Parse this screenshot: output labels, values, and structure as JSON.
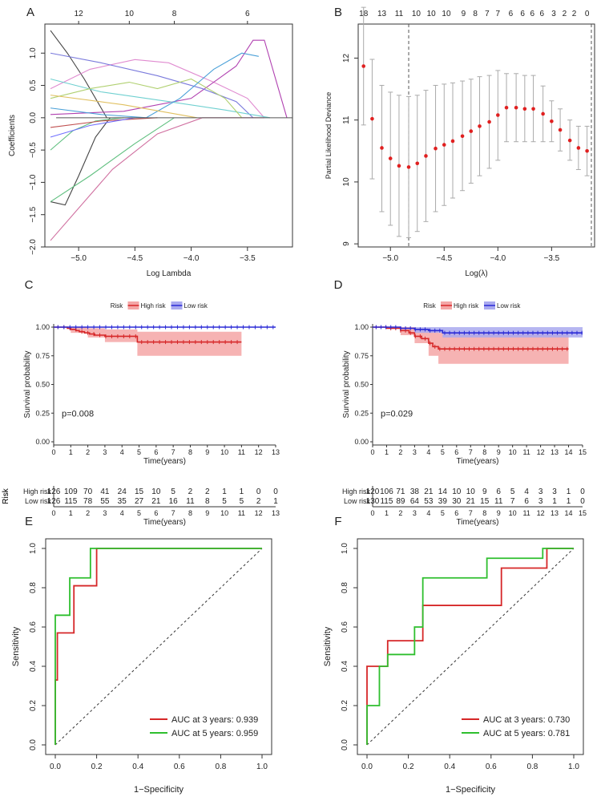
{
  "colors": {
    "red": "#d62728",
    "red_fill": "#f4a6a6",
    "blue": "#2b2bd6",
    "blue_fill": "#a9a9ef",
    "green": "#2fbf2f",
    "axis": "#222222",
    "grey": "#9a9a9a"
  },
  "panels": [
    {
      "letter": "A"
    },
    {
      "letter": "B"
    },
    {
      "letter": "C"
    },
    {
      "letter": "D"
    },
    {
      "letter": "E"
    },
    {
      "letter": "F"
    }
  ],
  "chart_data": [
    {
      "id": "A",
      "type": "line",
      "title": "",
      "xlabel": "Log Lambda",
      "ylabel": "Coefficients",
      "xlim": [
        -5.3,
        -3.1
      ],
      "ylim": [
        -2.0,
        1.45
      ],
      "xticks": [
        -5.0,
        -4.5,
        -4.0,
        -3.5
      ],
      "yticks": [
        -2.0,
        -1.5,
        -1.0,
        -0.5,
        0.0,
        0.5,
        1.0
      ],
      "top_axis": {
        "ticks": [
          -5.0,
          -4.55,
          -4.15,
          -3.5
        ],
        "labels": [
          "12",
          "10",
          "8",
          "6"
        ]
      },
      "series": [
        {
          "name": "s1",
          "color": "#444444",
          "x": [
            -5.25,
            -5.1,
            -4.95,
            -4.75
          ],
          "y": [
            1.35,
            1.0,
            0.6,
            0.0
          ]
        },
        {
          "name": "s2",
          "color": "#444444",
          "x": [
            -5.25,
            -5.12,
            -5.0,
            -4.85,
            -4.72
          ],
          "y": [
            -1.3,
            -1.35,
            -0.9,
            -0.3,
            0.0
          ]
        },
        {
          "name": "s3",
          "color": "#d070a0",
          "x": [
            -5.25,
            -5.0,
            -4.7,
            -4.3,
            -3.9,
            -3.6,
            -3.35
          ],
          "y": [
            -1.9,
            -1.4,
            -0.8,
            -0.25,
            0.0,
            0.0,
            0.0
          ]
        },
        {
          "name": "s4",
          "color": "#e08bd0",
          "x": [
            -5.25,
            -4.9,
            -4.5,
            -4.2,
            -3.8,
            -3.5,
            -3.35
          ],
          "y": [
            0.45,
            0.75,
            0.9,
            0.85,
            0.55,
            0.3,
            0.0
          ]
        },
        {
          "name": "s5",
          "color": "#b040b0",
          "x": [
            -5.25,
            -4.6,
            -4.0,
            -3.6,
            -3.45,
            -3.35,
            -3.15
          ],
          "y": [
            0.05,
            0.1,
            0.3,
            0.8,
            1.2,
            1.2,
            0.0
          ]
        },
        {
          "name": "s6",
          "color": "#7a7adc",
          "x": [
            -5.25,
            -4.8,
            -4.3,
            -3.9,
            -3.6,
            -3.45
          ],
          "y": [
            1.0,
            0.85,
            0.65,
            0.45,
            0.25,
            0.0
          ]
        },
        {
          "name": "s7",
          "color": "#6fd0d0",
          "x": [
            -5.25,
            -4.8,
            -4.2,
            -3.7,
            -3.3
          ],
          "y": [
            0.6,
            0.4,
            0.25,
            0.12,
            0.0
          ]
        },
        {
          "name": "s8",
          "color": "#b0d070",
          "x": [
            -5.25,
            -4.9,
            -4.55,
            -4.3,
            -4.0,
            -3.7,
            -3.55
          ],
          "y": [
            0.3,
            0.45,
            0.55,
            0.45,
            0.6,
            0.3,
            0.0
          ]
        },
        {
          "name": "s9",
          "color": "#4aa0d8",
          "x": [
            -5.25,
            -4.8,
            -4.4,
            -4.1,
            -3.8,
            -3.55,
            -3.4
          ],
          "y": [
            0.15,
            0.05,
            0.0,
            0.3,
            0.75,
            1.0,
            0.95
          ]
        },
        {
          "name": "s10",
          "color": "#60c080",
          "x": [
            -5.25,
            -5.05,
            -4.85,
            -4.6
          ],
          "y": [
            -0.5,
            -0.2,
            -0.05,
            0.0
          ]
        },
        {
          "name": "s11",
          "color": "#5fbf7f",
          "x": [
            -5.25,
            -4.9,
            -4.5,
            -4.15
          ],
          "y": [
            -1.3,
            -0.9,
            -0.4,
            0.0
          ]
        },
        {
          "name": "s12",
          "color": "#e0c060",
          "x": [
            -5.25,
            -4.6,
            -3.95
          ],
          "y": [
            0.35,
            0.2,
            0.0
          ]
        },
        {
          "name": "s13",
          "color": "#c05050",
          "x": [
            -5.25,
            -4.8,
            -4.3
          ],
          "y": [
            -0.15,
            -0.05,
            0.0
          ]
        },
        {
          "name": "s14",
          "color": "#7070ff",
          "x": [
            -5.25,
            -4.9,
            -4.5
          ],
          "y": [
            -0.3,
            -0.12,
            0.0
          ]
        }
      ]
    },
    {
      "id": "B",
      "type": "scatter",
      "title": "",
      "xlabel": "Log(λ)",
      "ylabel": "Partial Likelihood Deviance",
      "xlim": [
        -5.3,
        -3.1
      ],
      "ylim": [
        8.95,
        12.55
      ],
      "xticks": [
        -5.0,
        -4.5,
        -4.0,
        -3.5
      ],
      "yticks": [
        9,
        10,
        11,
        12
      ],
      "vlines": [
        -4.83,
        -3.13
      ],
      "top_labels": [
        "18",
        "13",
        "11",
        "10",
        "10",
        "10",
        "9",
        "8",
        "7",
        "7",
        "6",
        "6",
        "6",
        "6",
        "3",
        "2",
        "2",
        "0"
      ],
      "top_label_x": [
        -5.25,
        -5.08,
        -4.92,
        -4.76,
        -4.62,
        -4.48,
        -4.32,
        -4.21,
        -4.1,
        -4.0,
        -3.88,
        -3.77,
        -3.68,
        -3.59,
        -3.48,
        -3.38,
        -3.29,
        -3.17
      ],
      "x": [
        -5.25,
        -5.17,
        -5.08,
        -5.0,
        -4.92,
        -4.83,
        -4.75,
        -4.67,
        -4.58,
        -4.5,
        -4.42,
        -4.33,
        -4.25,
        -4.17,
        -4.08,
        -4.0,
        -3.92,
        -3.83,
        -3.75,
        -3.67,
        -3.58,
        -3.5,
        -3.42,
        -3.33,
        -3.25,
        -3.17
      ],
      "y": [
        11.87,
        11.02,
        10.55,
        10.38,
        10.26,
        10.24,
        10.3,
        10.42,
        10.54,
        10.6,
        10.66,
        10.74,
        10.82,
        10.9,
        10.97,
        11.08,
        11.2,
        11.2,
        11.18,
        11.18,
        11.1,
        10.98,
        10.84,
        10.67,
        10.55,
        10.5
      ],
      "err_low": [
        10.92,
        10.05,
        9.52,
        9.3,
        9.12,
        9.1,
        9.2,
        9.36,
        9.52,
        9.62,
        9.74,
        9.86,
        9.98,
        10.1,
        10.22,
        10.35,
        10.65,
        10.65,
        10.65,
        10.65,
        10.65,
        10.65,
        10.5,
        10.35,
        10.2,
        10.1
      ],
      "err_high": [
        12.82,
        11.98,
        11.56,
        11.45,
        11.4,
        11.38,
        11.4,
        11.48,
        11.56,
        11.58,
        11.6,
        11.63,
        11.66,
        11.7,
        11.72,
        11.8,
        11.75,
        11.75,
        11.72,
        11.72,
        11.55,
        11.31,
        11.18,
        11.0,
        10.9,
        10.9
      ]
    },
    {
      "id": "C",
      "type": "line",
      "title": "",
      "xlabel": "Time(years)",
      "ylabel": "Survival probability",
      "xlim": [
        0,
        13
      ],
      "ylim": [
        0,
        1.0
      ],
      "xticks": [
        0,
        1,
        2,
        3,
        4,
        5,
        6,
        7,
        8,
        9,
        10,
        11,
        12,
        13
      ],
      "yticks": [
        "0.00",
        "0.25",
        "0.50",
        "0.75",
        "1.00"
      ],
      "legend": {
        "title": "Risk",
        "entries": [
          "High risk",
          "Low risk"
        ],
        "position": "top"
      },
      "pvalue": "p=0.008",
      "series": [
        {
          "name": "High risk",
          "x": [
            0,
            0.8,
            1.0,
            1.3,
            1.5,
            1.8,
            2.1,
            2.4,
            2.7,
            3.0,
            4.9,
            11.0
          ],
          "y": [
            1.0,
            0.99,
            0.98,
            0.97,
            0.96,
            0.95,
            0.94,
            0.93,
            0.93,
            0.92,
            0.87,
            0.87
          ],
          "ci_x": [
            0,
            1.0,
            2.0,
            3.0,
            4.9,
            11.0
          ],
          "ci_low": [
            1.0,
            0.95,
            0.91,
            0.87,
            0.75,
            0.75
          ],
          "ci_high": [
            1.0,
            1.0,
            0.99,
            0.98,
            0.96,
            0.96
          ]
        },
        {
          "name": "Low risk",
          "x": [
            0,
            13.0
          ],
          "y": [
            1.0,
            1.0
          ]
        }
      ],
      "risk_table": {
        "label": "Risk",
        "xlabel": "Time(years)",
        "rows": [
          {
            "name": "High risk",
            "values": [
              "126",
              "109",
              "70",
              "41",
              "24",
              "15",
              "10",
              "5",
              "2",
              "2",
              "1",
              "1",
              "0",
              "0"
            ]
          },
          {
            "name": "Low risk",
            "values": [
              "126",
              "115",
              "78",
              "55",
              "35",
              "27",
              "21",
              "16",
              "11",
              "8",
              "5",
              "5",
              "2",
              "1"
            ]
          }
        ],
        "times": [
          0,
          1,
          2,
          3,
          4,
          5,
          6,
          7,
          8,
          9,
          10,
          11,
          12,
          13
        ]
      }
    },
    {
      "id": "D",
      "type": "line",
      "title": "",
      "xlabel": "Time(years)",
      "ylabel": "Survival probability",
      "xlim": [
        0,
        15
      ],
      "ylim": [
        0,
        1.0
      ],
      "xticks": [
        0,
        1,
        2,
        3,
        4,
        5,
        6,
        7,
        8,
        9,
        10,
        11,
        12,
        13,
        14,
        15
      ],
      "yticks": [
        "0.00",
        "0.25",
        "0.50",
        "0.75",
        "1.00"
      ],
      "legend": {
        "title": "Risk",
        "entries": [
          "High risk",
          "Low risk"
        ],
        "position": "top"
      },
      "pvalue": "p=0.029",
      "series": [
        {
          "name": "High risk",
          "x": [
            0,
            1.0,
            2.0,
            2.6,
            3.0,
            3.5,
            4.0,
            4.3,
            4.7,
            14.0
          ],
          "y": [
            1.0,
            0.99,
            0.97,
            0.95,
            0.92,
            0.9,
            0.86,
            0.83,
            0.81,
            0.81
          ],
          "ci_x": [
            0,
            2.0,
            3.0,
            4.0,
            4.7,
            14.0
          ],
          "ci_low": [
            1.0,
            0.93,
            0.86,
            0.75,
            0.68,
            0.68
          ],
          "ci_high": [
            1.0,
            1.0,
            0.99,
            0.97,
            0.95,
            0.95
          ]
        },
        {
          "name": "Low risk",
          "x": [
            0,
            2.0,
            3.0,
            4.0,
            5.0,
            15.0
          ],
          "y": [
            1.0,
            0.99,
            0.98,
            0.97,
            0.95,
            0.95
          ],
          "ci_x": [
            0,
            3.0,
            5.0,
            15.0
          ],
          "ci_low": [
            1.0,
            0.95,
            0.91,
            0.91
          ],
          "ci_high": [
            1.0,
            1.0,
            1.0,
            1.0
          ]
        }
      ],
      "risk_table": {
        "label": "Risk",
        "xlabel": "Time(years)",
        "rows": [
          {
            "name": "High risk",
            "values": [
              "120",
              "106",
              "71",
              "38",
              "21",
              "14",
              "10",
              "10",
              "9",
              "6",
              "5",
              "4",
              "3",
              "3",
              "1",
              "0"
            ]
          },
          {
            "name": "Low risk",
            "values": [
              "130",
              "115",
              "89",
              "64",
              "53",
              "39",
              "30",
              "21",
              "15",
              "11",
              "7",
              "6",
              "3",
              "1",
              "1",
              "0"
            ]
          }
        ],
        "times": [
          0,
          1,
          2,
          3,
          4,
          5,
          6,
          7,
          8,
          9,
          10,
          11,
          12,
          13,
          14,
          15
        ]
      }
    },
    {
      "id": "E",
      "type": "line",
      "title": "",
      "xlabel": "1−Specificity",
      "ylabel": "Sensitivity",
      "xlim": [
        0,
        1.0
      ],
      "ylim": [
        0,
        1.0
      ],
      "xticks": [
        "0.0",
        "0.2",
        "0.4",
        "0.6",
        "0.8",
        "1.0"
      ],
      "yticks": [
        "0.0",
        "0.2",
        "0.4",
        "0.6",
        "0.8",
        "1.0"
      ],
      "legend": {
        "position": "bottom-right"
      },
      "series": [
        {
          "name": "AUC at 3 years: 0.939",
          "x": [
            0,
            0.0,
            0.01,
            0.01,
            0.09,
            0.09,
            0.2,
            0.2,
            1.0
          ],
          "y": [
            0,
            0.33,
            0.33,
            0.57,
            0.57,
            0.81,
            0.81,
            1.0,
            1.0
          ]
        },
        {
          "name": "AUC at 5 years: 0.959",
          "x": [
            0,
            0.0,
            0.07,
            0.07,
            0.17,
            0.17,
            1.0
          ],
          "y": [
            0,
            0.66,
            0.66,
            0.85,
            0.85,
            1.0,
            1.0
          ]
        }
      ]
    },
    {
      "id": "F",
      "type": "line",
      "title": "",
      "xlabel": "1−Specificity",
      "ylabel": "Sensitivity",
      "xlim": [
        0,
        1.0
      ],
      "ylim": [
        0,
        1.0
      ],
      "xticks": [
        "0.0",
        "0.2",
        "0.4",
        "0.6",
        "0.8",
        "1.0"
      ],
      "yticks": [
        "0.0",
        "0.2",
        "0.4",
        "0.6",
        "0.8",
        "1.0"
      ],
      "legend": {
        "position": "bottom-right"
      },
      "series": [
        {
          "name": "AUC at 3 years: 0.730",
          "x": [
            0,
            0.0,
            0.0,
            0.1,
            0.1,
            0.27,
            0.27,
            0.65,
            0.65,
            0.87,
            0.87,
            1.0
          ],
          "y": [
            0,
            0.2,
            0.4,
            0.4,
            0.53,
            0.53,
            0.71,
            0.71,
            0.9,
            0.9,
            1.0,
            1.0
          ]
        },
        {
          "name": "AUC at 5 years: 0.781",
          "x": [
            0,
            0.0,
            0.06,
            0.06,
            0.1,
            0.1,
            0.23,
            0.23,
            0.27,
            0.27,
            0.58,
            0.58,
            0.85,
            0.85,
            1.0
          ],
          "y": [
            0,
            0.2,
            0.2,
            0.4,
            0.4,
            0.46,
            0.46,
            0.6,
            0.6,
            0.85,
            0.85,
            0.95,
            0.95,
            1.0,
            1.0
          ]
        }
      ]
    }
  ]
}
